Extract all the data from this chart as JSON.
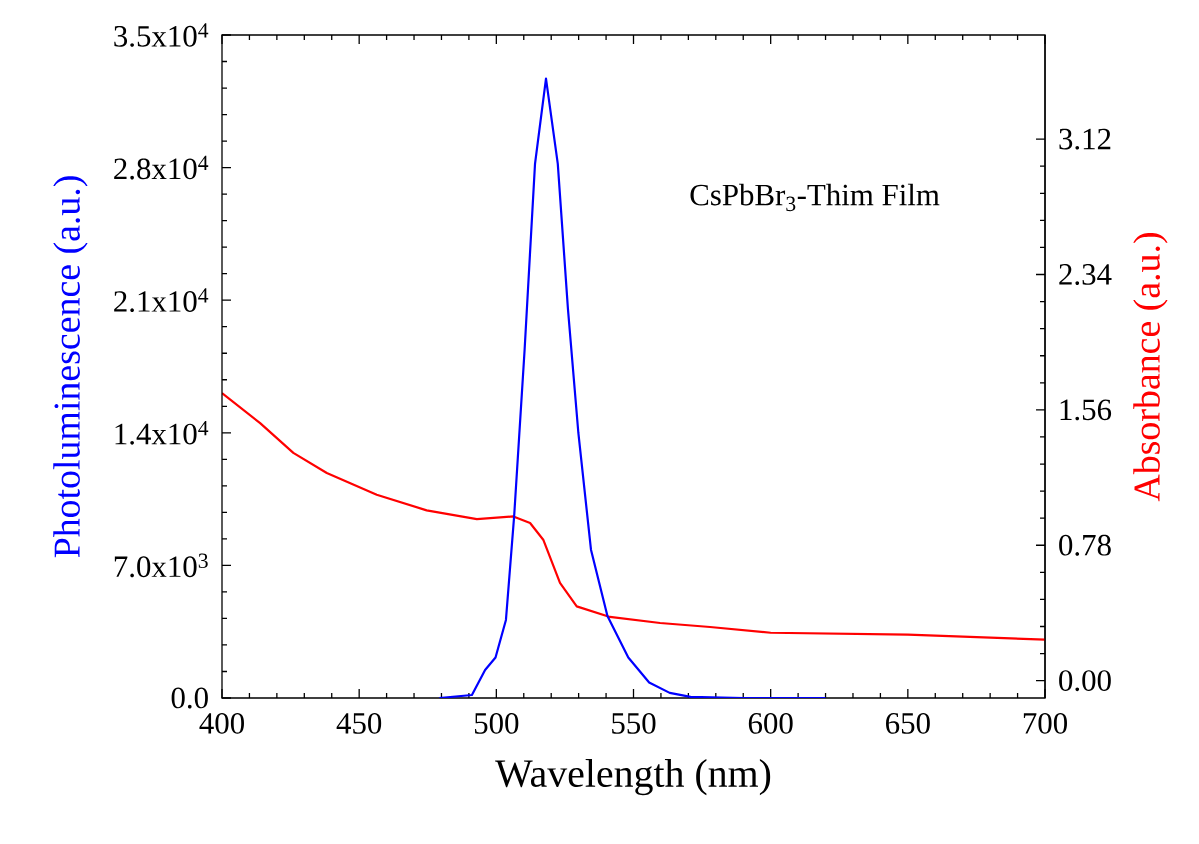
{
  "chart_data": {
    "type": "line",
    "xlabel": "Wavelength (nm)",
    "ylabel": "Photoluminescence (a.u.)",
    "y2label": "Absorbance (a.u.)",
    "annotations": [
      "CsPbBr$_{3}$-Thim Film"
    ],
    "xlim": [
      400,
      700
    ],
    "xticks": [
      400,
      450,
      500,
      550,
      600,
      650,
      700
    ],
    "ylim": [
      0,
      35000
    ],
    "yticks": [
      {
        "value": 0,
        "label": "0.0"
      },
      {
        "value": 7000,
        "label": "7.0x10$^{3}$"
      },
      {
        "value": 14000,
        "label": "1.4x10$^{4}$"
      },
      {
        "value": 21000,
        "label": "2.1x10$^{4}$"
      },
      {
        "value": 28000,
        "label": "2.8x10$^{4}$"
      },
      {
        "value": 35000,
        "label": "3.5x10$^{4}$"
      }
    ],
    "y2lim": [
      -0.1,
      3.72
    ],
    "y2ticks": [
      {
        "value": 0,
        "label": "0.00"
      },
      0.78,
      1.56,
      2.34,
      3.12
    ],
    "grid": false,
    "marker": "none",
    "line_style": "solid",
    "series": [
      {
        "color": "#0000ff",
        "x": [
          479.2,
          491.1,
          495.9,
          499.7,
          503.5,
          506.5,
          510.3,
          514.1,
          518.1,
          522.4,
          526.1,
          529.9,
          534.5,
          540.5,
          548.1,
          555.7,
          563.2,
          570.8,
          590,
          620
        ],
        "values": [
          0,
          160,
          1480,
          2140,
          4120,
          9610,
          18370,
          28200,
          32700,
          28200,
          20540,
          13990,
          7830,
          4330,
          2140,
          820,
          270,
          60,
          0,
          0
        ]
      },
      {
        "color": "#ff0000",
        "axis": "y2",
        "x": [
          400,
          413.9,
          426,
          438.2,
          456.4,
          474.6,
          492.9,
          506.2,
          512.3,
          517.1,
          523.2,
          529.3,
          541.4,
          559.7,
          577.9,
          600,
          650,
          700
        ],
        "values": [
          1.656,
          1.484,
          1.312,
          1.196,
          1.071,
          0.981,
          0.931,
          0.946,
          0.908,
          0.812,
          0.563,
          0.428,
          0.367,
          0.332,
          0.309,
          0.276,
          0.265,
          0.236
        ]
      }
    ]
  }
}
